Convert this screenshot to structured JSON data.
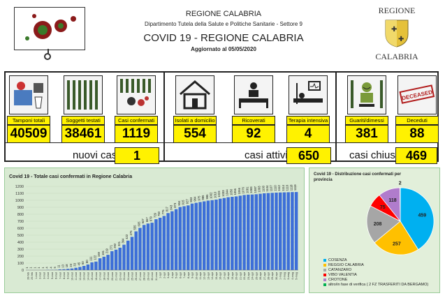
{
  "header": {
    "region": "REGIONE CALABRIA",
    "department": "Dipartimento Tutela della Salute e Politiche Sanitarie - Settore 9",
    "title": "COVID 19 - REGIONE CALABRIA",
    "updated": "Aggiornato al  05/05/2020"
  },
  "logo": {
    "top": "REGIONE",
    "bottom": "CALABRIA"
  },
  "stats": {
    "tamponi": {
      "label": "Tamponi totali",
      "value": "40509"
    },
    "soggetti": {
      "label": "Soggetti testati",
      "value": "38461"
    },
    "confermati": {
      "label": "Casi confermati",
      "value": "1119"
    },
    "isolati": {
      "label": "Isolati a domicilio",
      "value": "554"
    },
    "ricoverati": {
      "label": "Ricoverati",
      "value": "92"
    },
    "terapia": {
      "label": "Terapia intensiva",
      "value": "4"
    },
    "guariti": {
      "label": "Guariti/dimessi",
      "value": "381"
    },
    "deceduti": {
      "label": "Deceduti",
      "value": "88"
    }
  },
  "summary": {
    "nuovi_label": "nuovi casi",
    "nuovi": "1",
    "attivi_label": "casi attivi",
    "attivi": "650",
    "chiusi_label": "casi chiusi",
    "chiusi": "469"
  },
  "deceased_stamp": "DECEASED",
  "colors": {
    "yellow": "#fff200",
    "bar": "#3d6fd8",
    "panel": "#d9ead3"
  },
  "chart_data": [
    {
      "type": "bar",
      "title": "Covid 19 - Totale casi confermati in Regione Calabria",
      "ylim": [
        0,
        1200
      ],
      "yticks": [
        0,
        100,
        200,
        300,
        400,
        500,
        600,
        700,
        800,
        900,
        1000,
        1100,
        1200
      ],
      "categories": [
        "28-feb",
        "29-feb",
        "1-mar",
        "2-mar",
        "3-mar",
        "4-mar",
        "5-mar",
        "6-mar",
        "7-mar",
        "8-mar",
        "9-mar",
        "10-mar",
        "11-mar",
        "12-mar",
        "13-mar",
        "14-mar",
        "15-mar",
        "16-mar",
        "17-mar",
        "18-mar",
        "19-mar",
        "20-mar",
        "21-mar",
        "22-mar",
        "23-mar",
        "24-mar",
        "25-mar",
        "26-mar",
        "27-mar",
        "28-mar",
        "29-mar",
        "30-mar",
        "31-mar",
        "1-apr",
        "2-apr",
        "3-apr",
        "4-apr",
        "5-apr",
        "6-apr",
        "7-apr",
        "8-apr",
        "9-apr",
        "10-apr",
        "11-apr",
        "12-apr",
        "13-apr",
        "14-apr",
        "15-apr",
        "16-apr",
        "17-apr",
        "18-apr",
        "19-apr",
        "20-apr",
        "21-apr",
        "22-apr",
        "23-apr",
        "24-apr",
        "25-apr",
        "26-apr",
        "27-apr",
        "28-apr",
        "29-apr",
        "30-apr",
        "1-mag",
        "2-mag",
        "3-mag",
        "4-mag",
        "5-mag"
      ],
      "values": [
        1,
        1,
        1,
        1,
        1,
        4,
        4,
        5,
        11,
        13,
        18,
        23,
        33,
        45,
        60,
        80,
        111,
        122,
        169,
        191,
        219,
        271,
        292,
        321,
        364,
        422,
        476,
        555,
        605,
        647,
        667,
        679,
        729,
        750,
        776,
        817,
        843,
        873,
        904,
        915,
        927,
        953,
        964,
        975,
        985,
        995,
        1002,
        1010,
        1023,
        1033,
        1044,
        1050,
        1056,
        1066,
        1076,
        1081,
        1083,
        1087,
        1093,
        1100,
        1104,
        1107,
        1110,
        1112,
        1114,
        1116,
        1118,
        1119
      ]
    },
    {
      "type": "pie",
      "title": "Covid 19 - Distribuzione casi confermati per provincia",
      "categories": [
        "COSENZA",
        "REGGIO CALABRIA",
        "CATANZARO",
        "VIBO VALENTIA",
        "CROTONE",
        "altro/in fase di verifica ( 2 FZ TRASFERITI DA BERGAMO)"
      ],
      "values": [
        459,
        257,
        208,
        75,
        118,
        2
      ],
      "colors": [
        "#00b0f0",
        "#ffc000",
        "#a6a6a6",
        "#ff0000",
        "#b07ccc",
        "#00b050"
      ]
    }
  ]
}
